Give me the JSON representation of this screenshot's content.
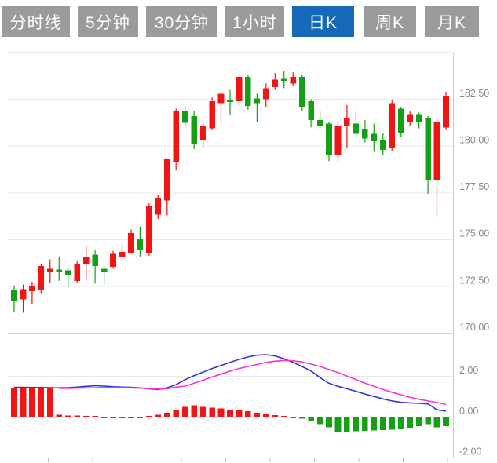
{
  "tabs": [
    {
      "label": "分时线",
      "active": false
    },
    {
      "label": "5分钟",
      "active": false
    },
    {
      "label": "30分钟",
      "active": false
    },
    {
      "label": "1小时",
      "active": false
    },
    {
      "label": "日K",
      "active": true
    },
    {
      "label": "周K",
      "active": false
    },
    {
      "label": "月K",
      "active": false
    }
  ],
  "colors": {
    "up_candle": "#f01414",
    "down_candle": "#14a014",
    "dif_line": "#3333dd",
    "dea_line": "#ff2fd8",
    "tab_bg": "#9b9b9b",
    "tab_active_bg": "#1668b8",
    "tab_text": "#ffffff",
    "grid_light": "#eaeaea",
    "grid_dark": "#d6d6d6",
    "axis_line": "#c9cdd6",
    "tick_mark": "#b9c0d4",
    "axis_label": "#8a8a8a"
  },
  "chart_data": {
    "type": "candlestick",
    "title": "",
    "legend_position": "none",
    "grid": true,
    "panels": [
      "price",
      "macd"
    ],
    "price_panel": {
      "ylim": [
        169.5,
        185.0
      ],
      "gridline_values": [
        185.0,
        182.5,
        180.0,
        177.5,
        175.0,
        172.5,
        170.0
      ],
      "axis_labels": [
        {
          "value": 182.5,
          "text": "182.50"
        },
        {
          "value": 180.0,
          "text": "180.00"
        },
        {
          "value": 177.5,
          "text": "177.50"
        },
        {
          "value": 175.0,
          "text": "175.00"
        },
        {
          "value": 172.5,
          "text": "172.50"
        },
        {
          "value": 170.0,
          "text": "170.00"
        }
      ],
      "candles_ohlc_order": [
        "open",
        "high",
        "low",
        "close"
      ],
      "candles": [
        [
          172.3,
          172.55,
          171.15,
          171.75
        ],
        [
          171.8,
          172.6,
          171.1,
          172.35
        ],
        [
          172.25,
          172.75,
          171.55,
          172.5
        ],
        [
          172.3,
          173.7,
          172.1,
          173.6
        ],
        [
          173.25,
          173.95,
          172.7,
          173.45
        ],
        [
          173.4,
          174.1,
          172.8,
          173.25
        ],
        [
          173.35,
          173.5,
          172.45,
          173.1
        ],
        [
          172.8,
          173.85,
          172.7,
          173.7
        ],
        [
          173.7,
          174.65,
          172.85,
          174.1
        ],
        [
          174.2,
          174.45,
          172.65,
          173.6
        ],
        [
          173.45,
          173.6,
          172.6,
          173.3
        ],
        [
          173.55,
          174.4,
          173.45,
          174.25
        ],
        [
          174.1,
          174.75,
          173.9,
          174.35
        ],
        [
          174.3,
          175.55,
          174.25,
          175.35
        ],
        [
          175.05,
          175.7,
          174.1,
          174.45
        ],
        [
          174.3,
          176.95,
          174.15,
          176.8
        ],
        [
          176.35,
          177.4,
          176.1,
          177.25
        ],
        [
          177.1,
          179.35,
          176.3,
          179.3
        ],
        [
          179.15,
          182.0,
          178.7,
          181.9
        ],
        [
          181.85,
          182.1,
          181.0,
          181.25
        ],
        [
          181.6,
          181.9,
          179.85,
          180.1
        ],
        [
          180.35,
          181.25,
          179.95,
          181.1
        ],
        [
          180.95,
          182.6,
          180.85,
          182.4
        ],
        [
          182.3,
          183.0,
          181.25,
          182.8
        ],
        [
          182.45,
          183.0,
          181.65,
          182.35
        ],
        [
          182.4,
          183.8,
          182.15,
          183.7
        ],
        [
          183.7,
          183.8,
          181.95,
          182.15
        ],
        [
          182.55,
          182.8,
          181.3,
          182.3
        ],
        [
          182.5,
          183.35,
          182.1,
          183.1
        ],
        [
          183.15,
          183.9,
          183.0,
          183.55
        ],
        [
          183.6,
          184.0,
          183.1,
          183.5
        ],
        [
          183.35,
          183.95,
          183.2,
          183.7
        ],
        [
          183.7,
          183.8,
          181.9,
          182.1
        ],
        [
          182.4,
          182.5,
          181.0,
          181.4
        ],
        [
          181.4,
          181.9,
          180.95,
          181.1
        ],
        [
          181.2,
          181.3,
          179.2,
          179.5
        ],
        [
          179.5,
          181.3,
          179.2,
          181.1
        ],
        [
          181.05,
          182.2,
          179.9,
          181.5
        ],
        [
          181.2,
          181.9,
          180.4,
          180.65
        ],
        [
          180.9,
          181.4,
          180.2,
          180.4
        ],
        [
          180.65,
          181.2,
          179.7,
          180.25
        ],
        [
          180.3,
          180.7,
          179.5,
          179.8
        ],
        [
          179.9,
          182.45,
          179.75,
          182.3
        ],
        [
          182.0,
          182.1,
          180.5,
          180.7
        ],
        [
          181.3,
          181.85,
          181.1,
          181.7
        ],
        [
          181.7,
          181.8,
          180.95,
          181.3
        ],
        [
          181.5,
          181.6,
          177.45,
          178.2
        ],
        [
          178.2,
          181.5,
          176.2,
          181.3
        ],
        [
          181.0,
          182.9,
          180.85,
          182.7
        ]
      ]
    },
    "macd_panel": {
      "ylim": [
        -2.3,
        3.2
      ],
      "gridline_values": [
        2.0,
        0.0
      ],
      "axis_labels": [
        {
          "value": 2.0,
          "text": "2.00"
        },
        {
          "value": 0.0,
          "text": "0.00"
        },
        {
          "value": -2.0,
          "text": "-2.00"
        }
      ],
      "histogram": [
        1.45,
        1.45,
        1.45,
        1.43,
        1.48,
        0.12,
        0.08,
        0.07,
        0.06,
        0.05,
        -0.05,
        -0.06,
        -0.06,
        -0.05,
        -0.05,
        0.06,
        0.12,
        0.22,
        0.36,
        0.5,
        0.58,
        0.5,
        0.46,
        0.42,
        0.36,
        0.34,
        0.3,
        0.22,
        0.15,
        0.1,
        0.05,
        -0.05,
        -0.08,
        -0.2,
        -0.35,
        -0.5,
        -0.76,
        -0.72,
        -0.7,
        -0.68,
        -0.66,
        -0.64,
        -0.62,
        -0.6,
        -0.55,
        -0.45,
        -0.35,
        -0.5,
        -0.45
      ],
      "dif": [
        1.47,
        1.47,
        1.46,
        1.46,
        1.45,
        1.44,
        1.45,
        1.48,
        1.52,
        1.55,
        1.53,
        1.5,
        1.48,
        1.47,
        1.44,
        1.4,
        1.36,
        1.45,
        1.6,
        1.85,
        2.05,
        2.22,
        2.4,
        2.55,
        2.7,
        2.85,
        2.97,
        3.06,
        3.08,
        3.02,
        2.88,
        2.7,
        2.5,
        2.28,
        1.95,
        1.67,
        1.52,
        1.4,
        1.27,
        1.14,
        1.02,
        0.9,
        0.8,
        0.73,
        0.7,
        0.68,
        0.65,
        0.36,
        0.3
      ],
      "dea": [
        null,
        null,
        null,
        null,
        null,
        1.42,
        1.42,
        1.43,
        1.44,
        1.45,
        1.46,
        1.46,
        1.45,
        1.44,
        1.43,
        1.41,
        1.39,
        1.4,
        1.48,
        1.53,
        1.68,
        1.82,
        1.98,
        2.12,
        2.27,
        2.4,
        2.5,
        2.6,
        2.7,
        2.76,
        2.8,
        2.78,
        2.72,
        2.62,
        2.5,
        2.35,
        2.2,
        2.03,
        1.85,
        1.68,
        1.52,
        1.37,
        1.23,
        1.1,
        0.98,
        0.88,
        0.8,
        0.72,
        0.62
      ]
    }
  }
}
